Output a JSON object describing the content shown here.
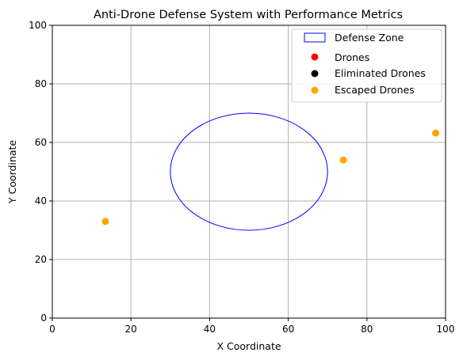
{
  "chart_data": {
    "type": "scatter",
    "title": "Anti-Drone Defense System with Performance Metrics",
    "xlabel": "X Coordinate",
    "ylabel": "Y Coordinate",
    "xlim": [
      0,
      100
    ],
    "ylim": [
      0,
      100
    ],
    "xticks": [
      0,
      20,
      40,
      60,
      80,
      100
    ],
    "yticks": [
      0,
      20,
      40,
      60,
      80,
      100
    ],
    "grid": true,
    "legend_position": "top-right",
    "defense_zone": {
      "name": "Defense Zone",
      "center": [
        50,
        50
      ],
      "radius": 20,
      "color": "#0000ff"
    },
    "series": [
      {
        "name": "Drones",
        "color": "#ff0000",
        "points": []
      },
      {
        "name": "Eliminated Drones",
        "color": "#000000",
        "points": []
      },
      {
        "name": "Escaped Drones",
        "color": "#ffa500",
        "points": [
          [
            13.5,
            33
          ],
          [
            74,
            54
          ],
          [
            97.5,
            63.2
          ]
        ]
      }
    ]
  }
}
